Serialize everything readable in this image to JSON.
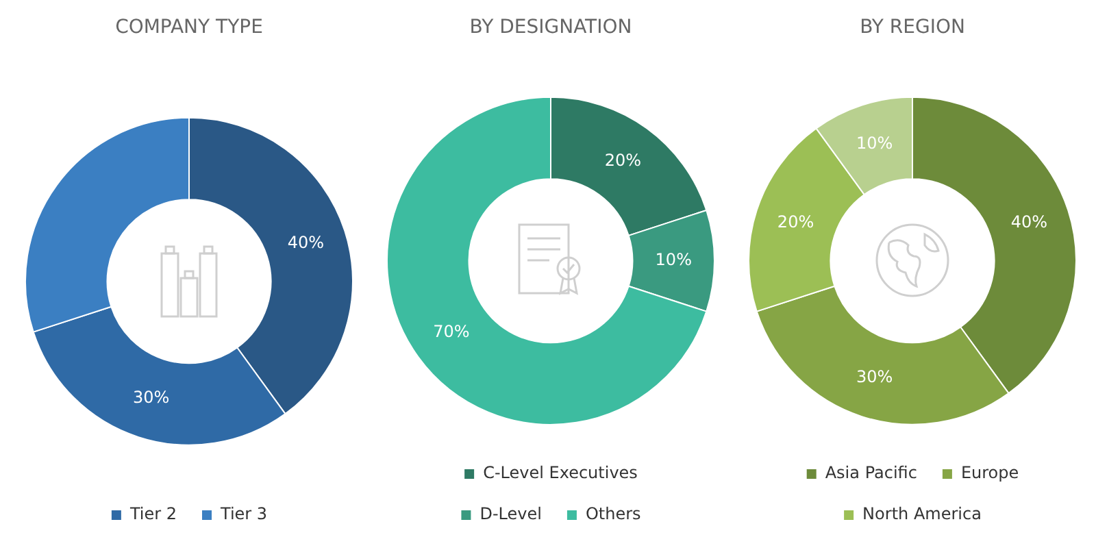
{
  "chart_data": [
    {
      "type": "donut",
      "title": "COMPANY TYPE",
      "categories": [
        null,
        "Tier 2",
        "Tier 3"
      ],
      "values": [
        40,
        30,
        30
      ],
      "colors": [
        "#2a5886",
        "#2f6aa6",
        "#3b7fc2"
      ],
      "value_labels": [
        "40%",
        "30%",
        null
      ],
      "legend": "bottom"
    },
    {
      "type": "donut",
      "title": "BY DESIGNATION",
      "categories": [
        "C-Level Executives",
        "D-Level",
        "Others"
      ],
      "values": [
        20,
        10,
        70
      ],
      "colors": [
        "#2e7a64",
        "#3a9a80",
        "#3dbca0"
      ],
      "value_labels": [
        "20%",
        "10%",
        "70%"
      ],
      "legend": "bottom"
    },
    {
      "type": "donut",
      "title": "BY REGION",
      "categories": [
        "Asia Pacific",
        "Europe",
        "North America",
        null
      ],
      "values": [
        40,
        30,
        20,
        10
      ],
      "colors": [
        "#6d8b3a",
        "#86a545",
        "#9cbf55",
        "#b8d08f"
      ],
      "value_labels": [
        "40%",
        "30%",
        "20%",
        "10%"
      ],
      "legend": "bottom"
    }
  ]
}
